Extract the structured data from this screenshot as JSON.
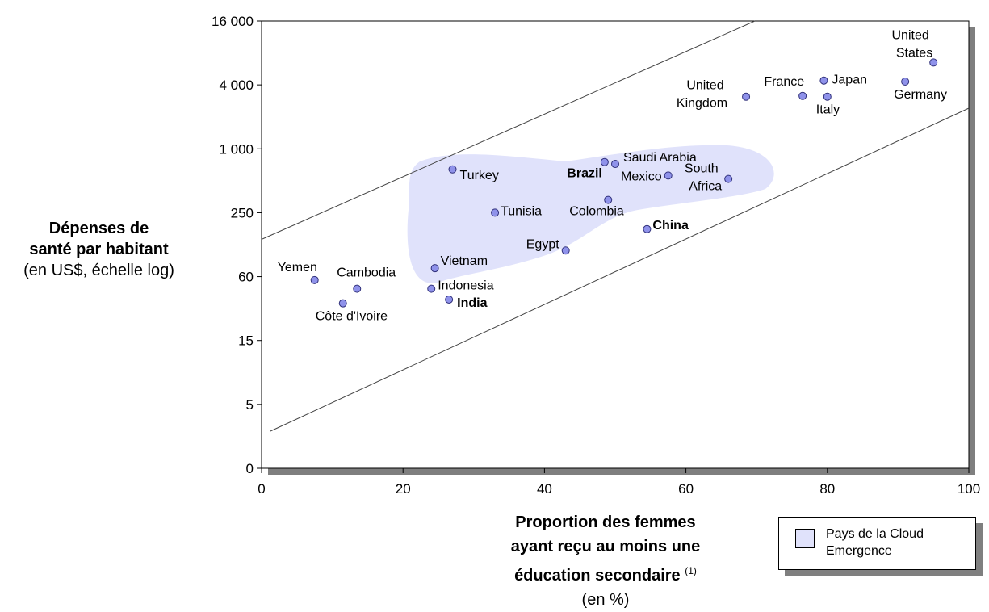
{
  "colors": {
    "cloud": "#e0e2fb",
    "point_fill": "#8f92ea",
    "point_stroke": "#30307a",
    "shadow": "#7f7f7f"
  },
  "labels": {
    "y_line1": "Dépenses de",
    "y_line2": "santé par habitant",
    "y_line3": "(en US$, échelle log)",
    "x_line1": "Proportion des femmes",
    "x_line2": "ayant reçu au moins une",
    "x_line3": "éducation secondaire",
    "x_note": "(1)",
    "x_line4": "(en %)"
  },
  "legend": {
    "line1": "Pays de la Cloud",
    "line2": "Emergence"
  },
  "chart_data": {
    "type": "scatter",
    "x_range": [
      0,
      100
    ],
    "x_ticks": [
      "0",
      "20",
      "40",
      "60",
      "80",
      "100"
    ],
    "y_scale": "log",
    "y_ticks": [
      "0",
      "5",
      "15",
      "60",
      "250",
      "1 000",
      "4 000",
      "16 000"
    ],
    "grid": false,
    "points": [
      {
        "label": "United States",
        "x": 95,
        "y": 6500,
        "bold": false
      },
      {
        "label": "Japan",
        "x": 79.5,
        "y": 4400,
        "bold": false
      },
      {
        "label": "Germany",
        "x": 91,
        "y": 4300,
        "bold": false
      },
      {
        "label": "France",
        "x": 76.5,
        "y": 3150,
        "bold": false
      },
      {
        "label": "Italy",
        "x": 80,
        "y": 3100,
        "bold": false
      },
      {
        "label": "United Kingdom",
        "x": 68.5,
        "y": 3100,
        "bold": false
      },
      {
        "label": "Brazil",
        "x": 48.5,
        "y": 750,
        "bold": true
      },
      {
        "label": "Saudi Arabia",
        "x": 50,
        "y": 720,
        "bold": false
      },
      {
        "label": "Mexico",
        "x": 57.5,
        "y": 560,
        "bold": false
      },
      {
        "label": "South Africa",
        "x": 66,
        "y": 520,
        "bold": false
      },
      {
        "label": "Turkey",
        "x": 27,
        "y": 640,
        "bold": false
      },
      {
        "label": "Colombia",
        "x": 49,
        "y": 330,
        "bold": false
      },
      {
        "label": "Tunisia",
        "x": 33,
        "y": 250,
        "bold": false
      },
      {
        "label": "China",
        "x": 54.5,
        "y": 175,
        "bold": true
      },
      {
        "label": "Egypt",
        "x": 43,
        "y": 110,
        "bold": false
      },
      {
        "label": "Vietnam",
        "x": 24.5,
        "y": 75,
        "bold": false
      },
      {
        "label": "Indonesia",
        "x": 24,
        "y": 48,
        "bold": false
      },
      {
        "label": "India",
        "x": 26.5,
        "y": 38,
        "bold": true
      },
      {
        "label": "Yemen",
        "x": 7.5,
        "y": 58,
        "bold": false
      },
      {
        "label": "Cambodia",
        "x": 13.5,
        "y": 48,
        "bold": false
      },
      {
        "label": "Côte d'Ivoire",
        "x": 11.5,
        "y": 35,
        "bold": false
      }
    ]
  }
}
